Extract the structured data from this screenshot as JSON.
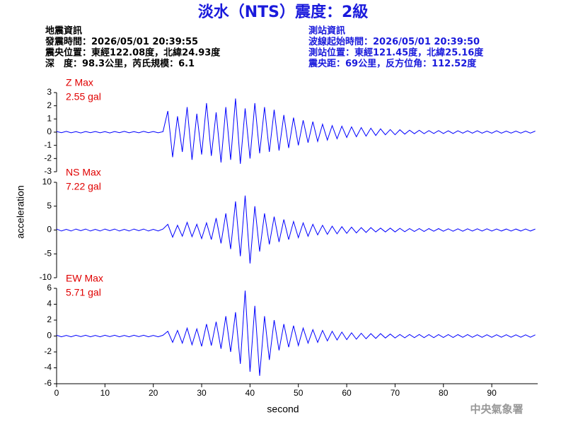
{
  "chart_data": {
    "type": "line",
    "title": "淡水（NTS）震度：2級",
    "info_left": [
      "地震資訊",
      "發震時間：2026/05/01 20:39:55",
      "震央位置：東經122.08度，北緯24.93度",
      "深　度：98.3公里，芮氏規模：6.1"
    ],
    "info_right": [
      "測站資訊",
      "波線起始時間：2026/05/01 20:39:50",
      "測站位置：東經121.45度，北緯25.16度",
      "震央距：69公里，反方位角：112.52度"
    ],
    "y_label": "acceleration",
    "x_label": "second",
    "footer": "中央氣象署",
    "xlim": [
      0,
      99.5
    ],
    "xticks": [
      0,
      10,
      20,
      30,
      40,
      50,
      60,
      70,
      80,
      90
    ],
    "x": [
      0,
      1,
      2,
      3,
      4,
      5,
      6,
      7,
      8,
      9,
      10,
      11,
      12,
      13,
      14,
      15,
      16,
      17,
      18,
      19,
      20,
      21,
      22,
      23,
      24,
      25,
      26,
      27,
      28,
      29,
      30,
      31,
      32,
      33,
      34,
      35,
      36,
      37,
      38,
      39,
      40,
      41,
      42,
      43,
      44,
      45,
      46,
      47,
      48,
      49,
      50,
      51,
      52,
      53,
      54,
      55,
      56,
      57,
      58,
      59,
      60,
      61,
      62,
      63,
      64,
      65,
      66,
      67,
      68,
      69,
      70,
      71,
      72,
      73,
      74,
      75,
      76,
      77,
      78,
      79,
      80,
      81,
      82,
      83,
      84,
      85,
      86,
      87,
      88,
      89,
      90,
      91,
      92,
      93,
      94,
      95,
      96,
      97,
      98,
      99
    ],
    "panels": [
      {
        "name": "Z Max",
        "max_label": "2.55 gal",
        "color": "#0000ff",
        "ylim": [
          -3,
          3
        ],
        "yticks": [
          -3,
          -2,
          -1,
          0,
          1,
          2,
          3
        ],
        "values": [
          0.05,
          -0.04,
          0.06,
          -0.05,
          0.04,
          -0.06,
          0.05,
          -0.04,
          0.05,
          -0.05,
          0.04,
          -0.06,
          0.05,
          -0.04,
          0.06,
          -0.05,
          0.04,
          -0.05,
          0.06,
          -0.04,
          0.05,
          -0.05,
          0.04,
          1.6,
          -1.9,
          1.2,
          -1.5,
          1.9,
          -2.1,
          1.4,
          -1.7,
          2.2,
          -1.8,
          1.5,
          -2.3,
          1.9,
          -2.1,
          2.55,
          -2.4,
          1.8,
          -2.0,
          2.2,
          -1.6,
          1.9,
          -1.5,
          1.7,
          -1.4,
          1.3,
          -1.2,
          1.1,
          -1.0,
          0.9,
          -0.8,
          0.8,
          -0.7,
          0.6,
          -0.6,
          0.5,
          -0.5,
          0.45,
          -0.4,
          0.4,
          -0.35,
          0.35,
          -0.3,
          0.3,
          -0.25,
          0.25,
          -0.2,
          0.2,
          -0.2,
          0.18,
          -0.15,
          0.15,
          -0.12,
          0.14,
          -0.12,
          0.12,
          -0.1,
          0.12,
          -0.1,
          0.1,
          -0.1,
          0.1,
          -0.08,
          0.1,
          -0.08,
          0.1,
          -0.08,
          0.08,
          -0.08,
          0.1,
          -0.08,
          0.08,
          -0.07,
          0.08,
          -0.07,
          0.08,
          -0.07,
          0.08
        ]
      },
      {
        "name": "NS Max",
        "max_label": "7.22 gal",
        "color": "#0000ff",
        "ylim": [
          -10,
          10
        ],
        "yticks": [
          -10,
          -5,
          0,
          5,
          10
        ],
        "values": [
          0.2,
          -0.2,
          0.15,
          -0.2,
          0.2,
          -0.15,
          0.2,
          -0.2,
          0.15,
          -0.2,
          0.2,
          -0.15,
          0.2,
          -0.2,
          0.15,
          -0.2,
          0.2,
          -0.15,
          0.2,
          -0.2,
          0.15,
          -0.2,
          0.2,
          1.2,
          -1.5,
          1.0,
          -1.3,
          1.6,
          -1.4,
          1.2,
          -1.8,
          1.5,
          -2.0,
          2.5,
          -2.8,
          3.5,
          -4.0,
          6.0,
          -5.5,
          7.22,
          -7.0,
          5.0,
          -4.5,
          3.5,
          -3.0,
          2.8,
          -2.5,
          2.2,
          -2.0,
          1.8,
          -1.6,
          1.5,
          -1.3,
          1.2,
          -1.0,
          1.0,
          -0.9,
          0.8,
          -0.8,
          0.7,
          -0.7,
          0.6,
          -0.6,
          0.5,
          -0.5,
          0.5,
          -0.4,
          0.4,
          -0.4,
          0.4,
          -0.4,
          0.35,
          -0.35,
          0.3,
          -0.3,
          0.3,
          -0.3,
          0.3,
          -0.25,
          0.3,
          -0.25,
          0.25,
          -0.25,
          0.25,
          -0.25,
          0.25,
          -0.2,
          0.25,
          -0.2,
          0.25,
          -0.2,
          0.2,
          -0.2,
          0.2,
          -0.2,
          0.2,
          -0.2,
          0.2,
          -0.2,
          0.2
        ]
      },
      {
        "name": "EW Max",
        "max_label": "5.71 gal",
        "color": "#0000ff",
        "ylim": [
          -6,
          6
        ],
        "yticks": [
          -6,
          -4,
          -2,
          0,
          2,
          4,
          6
        ],
        "values": [
          0.1,
          -0.1,
          0.08,
          -0.1,
          0.1,
          -0.08,
          0.1,
          -0.1,
          0.08,
          -0.1,
          0.1,
          -0.08,
          0.1,
          -0.1,
          0.08,
          -0.1,
          0.1,
          -0.08,
          0.1,
          -0.1,
          0.08,
          -0.1,
          0.1,
          0.6,
          -0.8,
          0.7,
          -0.9,
          1.0,
          -1.1,
          0.9,
          -1.3,
          1.5,
          -1.2,
          1.8,
          -1.6,
          2.5,
          -2.0,
          3.0,
          -3.5,
          5.71,
          -4.5,
          3.8,
          -5.0,
          2.5,
          -3.0,
          2.0,
          -1.8,
          1.5,
          -1.4,
          1.3,
          -1.2,
          1.0,
          -0.9,
          0.8,
          -0.8,
          0.7,
          -0.6,
          0.6,
          -0.5,
          0.5,
          -0.45,
          0.4,
          -0.4,
          0.35,
          -0.35,
          0.3,
          -0.3,
          0.3,
          -0.25,
          0.25,
          -0.25,
          0.2,
          -0.22,
          0.2,
          -0.2,
          0.2,
          -0.2,
          0.18,
          -0.2,
          0.18,
          -0.18,
          0.18,
          -0.18,
          0.18,
          -0.16,
          0.18,
          -0.16,
          0.16,
          -0.16,
          0.16,
          -0.16,
          0.16,
          -0.15,
          0.16,
          -0.15,
          0.15,
          -0.15,
          0.15,
          -0.15,
          0.15
        ]
      }
    ]
  }
}
